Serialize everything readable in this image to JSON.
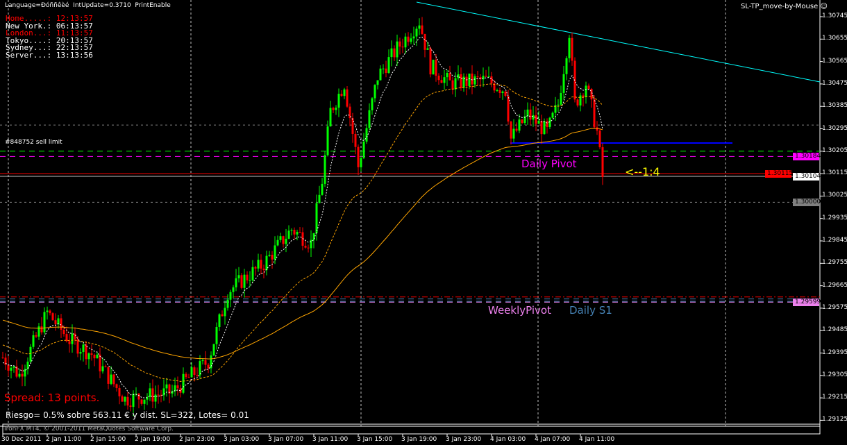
{
  "header": {
    "info_line": "Language=Ðóññêèé  IntUpdate=0.3710  PrintEnable",
    "indicator_name": "SL-TP_move-by-Mouse",
    "indicator_icon": "smiley-icon"
  },
  "clocks": [
    {
      "label": "Home.....:",
      "time": "12:13:57",
      "color": "#ff0000"
    },
    {
      "label": "New York.:",
      "time": "06:13:57",
      "color": "#ffffff"
    },
    {
      "label": "London...:",
      "time": "11:13:57",
      "color": "#ff0000"
    },
    {
      "label": "Tokyo....:",
      "time": "20:13:57",
      "color": "#ffffff"
    },
    {
      "label": "Sydney...:",
      "time": "22:13:57",
      "color": "#ffffff"
    },
    {
      "label": "Server...:",
      "time": "13:13:56",
      "color": "#ffffff"
    }
  ],
  "order_label": "#848752 sell limit",
  "labels": {
    "daily_pivot": "Daily Pivot",
    "ratio": "<--1:4",
    "weekly_pivot": "WeeklyPivot",
    "daily_s1": "Daily S1",
    "spread": "Spread: 13 points.",
    "risk": "Riesgo= 0.5% sobre 563.11 € y dist. SL=322, Lotes= 0.01",
    "copyright": "IronFX MT4, © 2001-2011 MetaQuotes Software Corp."
  },
  "price_axis": [
    "1.30745",
    "1.30655",
    "1.30565",
    "1.30475",
    "1.30385",
    "1.30295",
    "1.30205",
    "1.30115",
    "1.30025",
    "1.29935",
    "1.29845",
    "1.29755",
    "1.29665",
    "1.29575",
    "1.29485",
    "1.29395",
    "1.29305",
    "1.29215",
    "1.29125"
  ],
  "price_tags": [
    {
      "value": "1.30184",
      "bg": "#ff00ff"
    },
    {
      "value": "1.30115",
      "bg": "#ff0000"
    },
    {
      "value": "1.30104",
      "bg": "#ffffff"
    },
    {
      "value": "1.30000",
      "bg": "#808080"
    },
    {
      "value": "1.29599",
      "bg": "#ee82ee"
    }
  ],
  "time_axis": [
    "30 Dec 2011",
    "2 Jan 11:00",
    "2 Jan 15:00",
    "2 Jan 19:00",
    "2 Jan 23:00",
    "3 Jan 03:00",
    "3 Jan 07:00",
    "3 Jan 11:00",
    "3 Jan 15:00",
    "3 Jan 19:00",
    "3 Jan 23:00",
    "4 Jan 03:00",
    "4 Jan 07:00",
    "4 Jan 11:00"
  ],
  "chart_data": {
    "type": "candlestick",
    "colors": {
      "up": "#00ff00",
      "down": "#ff0000",
      "fast_ma": "#ffffff",
      "mid_ma": "#ffa500",
      "slow_ma": "#ffa500",
      "trendline": "#00ffff"
    },
    "close_path": [
      [
        "2 Jan 07:00",
        1.29377
      ],
      [
        "2 Jan 08:30",
        1.29307
      ],
      [
        "2 Jan 11:00",
        1.29558
      ],
      [
        "2 Jan 13:00",
        1.29447
      ],
      [
        "2 Jan 15:00",
        1.29391
      ],
      [
        "2 Jan 18:00",
        1.2921
      ],
      [
        "2 Jan 22:15",
        1.29238
      ],
      [
        "3 Jan 01:30",
        1.29363
      ],
      [
        "3 Jan 03:15",
        1.29642
      ],
      [
        "3 Jan 06:30",
        1.29754
      ],
      [
        "3 Jan 09:00",
        1.29892
      ],
      [
        "3 Jan 10:45",
        1.29837
      ],
      [
        "3 Jan 11:45",
        1.30087
      ],
      [
        "3 Jan 12:30",
        1.30366
      ],
      [
        "3 Jan 13:45",
        1.30478
      ],
      [
        "3 Jan 15:00",
        1.30143
      ],
      [
        "3 Jan 16:45",
        1.30505
      ],
      [
        "3 Jan 18:30",
        1.30617
      ],
      [
        "3 Jan 20:30",
        1.30728
      ],
      [
        "3 Jan 21:30",
        1.30547
      ],
      [
        "3 Jan 23:15",
        1.30478
      ],
      [
        "4 Jan 02:30",
        1.30491
      ],
      [
        "4 Jan 04:15",
        1.3045
      ],
      [
        "4 Jan 04:45",
        1.30255
      ],
      [
        "4 Jan 06:15",
        1.30352
      ],
      [
        "4 Jan 08:00",
        1.30282
      ],
      [
        "4 Jan 09:00",
        1.30394
      ],
      [
        "4 Jan 10:00",
        1.30686
      ],
      [
        "4 Jan 10:30",
        1.30394
      ],
      [
        "4 Jan 11:30",
        1.30478
      ],
      [
        "4 Jan 12:30",
        1.30282
      ],
      [
        "4 Jan 13:00",
        1.30101
      ]
    ],
    "levels": [
      {
        "name": "sell-limit",
        "price": 1.30205,
        "color": "#00ff00",
        "style": "dash"
      },
      {
        "name": "daily-pivot",
        "price": 1.30184,
        "color": "#ff00ff",
        "style": "dash"
      },
      {
        "name": "ask",
        "price": 1.30115,
        "color": "#ff0000",
        "style": "solid"
      },
      {
        "name": "bid",
        "price": 1.30104,
        "color": "#c0c0c0",
        "style": "solid"
      },
      {
        "name": "round",
        "price": 1.3,
        "color": "#808080",
        "style": "dot"
      },
      {
        "name": "grid-upper",
        "price": 1.3031,
        "color": "#808080",
        "style": "dot"
      },
      {
        "name": "daily-s1",
        "price": 1.2962,
        "color": "#ff0000",
        "style": "dashdot"
      },
      {
        "name": "daily-s1-blue",
        "price": 1.29612,
        "color": "#4682b4",
        "style": "dash"
      },
      {
        "name": "weekly-pivot",
        "price": 1.29599,
        "color": "#ee82ee",
        "style": "dash"
      }
    ]
  }
}
